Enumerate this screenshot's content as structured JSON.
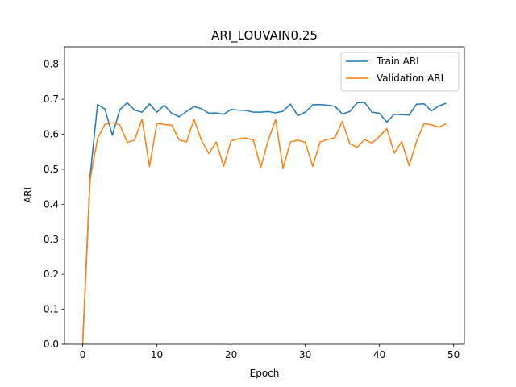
{
  "chart_data": {
    "type": "line",
    "title": "ARI_LOUVAIN0.25",
    "xlabel": "Epoch",
    "ylabel": "ARI",
    "xlim": [
      -2.45,
      51.45
    ],
    "ylim": [
      0.0,
      0.85
    ],
    "xticks": [
      0,
      10,
      20,
      30,
      40,
      50
    ],
    "yticks": [
      0.0,
      0.1,
      0.2,
      0.3,
      0.4,
      0.5,
      0.6,
      0.7,
      0.8
    ],
    "grid": false,
    "legend_position": "top-right",
    "x": [
      0,
      1,
      2,
      3,
      4,
      5,
      6,
      7,
      8,
      9,
      10,
      11,
      12,
      13,
      14,
      15,
      16,
      17,
      18,
      19,
      20,
      21,
      22,
      23,
      24,
      25,
      26,
      27,
      28,
      29,
      30,
      31,
      32,
      33,
      34,
      35,
      36,
      37,
      38,
      39,
      40,
      41,
      42,
      43,
      44,
      45,
      46,
      47,
      48,
      49
    ],
    "series": [
      {
        "name": "Train ARI",
        "color": "#1f77b4",
        "values": [
          0.0,
          0.48,
          0.685,
          0.672,
          0.597,
          0.67,
          0.69,
          0.669,
          0.663,
          0.687,
          0.663,
          0.683,
          0.66,
          0.65,
          0.665,
          0.679,
          0.673,
          0.66,
          0.661,
          0.657,
          0.671,
          0.669,
          0.668,
          0.663,
          0.663,
          0.665,
          0.661,
          0.666,
          0.686,
          0.653,
          0.663,
          0.684,
          0.685,
          0.683,
          0.68,
          0.658,
          0.665,
          0.69,
          0.691,
          0.663,
          0.66,
          0.635,
          0.657,
          0.656,
          0.655,
          0.686,
          0.687,
          0.667,
          0.681,
          0.689
        ]
      },
      {
        "name": "Validation ARI",
        "color": "#ff7f0e",
        "values": [
          0.0,
          0.47,
          0.588,
          0.628,
          0.633,
          0.627,
          0.577,
          0.583,
          0.643,
          0.508,
          0.631,
          0.628,
          0.626,
          0.584,
          0.578,
          0.643,
          0.583,
          0.545,
          0.578,
          0.508,
          0.581,
          0.587,
          0.589,
          0.584,
          0.505,
          0.582,
          0.642,
          0.503,
          0.578,
          0.583,
          0.577,
          0.508,
          0.578,
          0.585,
          0.59,
          0.637,
          0.573,
          0.563,
          0.585,
          0.575,
          0.594,
          0.616,
          0.546,
          0.579,
          0.51,
          0.58,
          0.63,
          0.627,
          0.62,
          0.63
        ]
      }
    ]
  }
}
